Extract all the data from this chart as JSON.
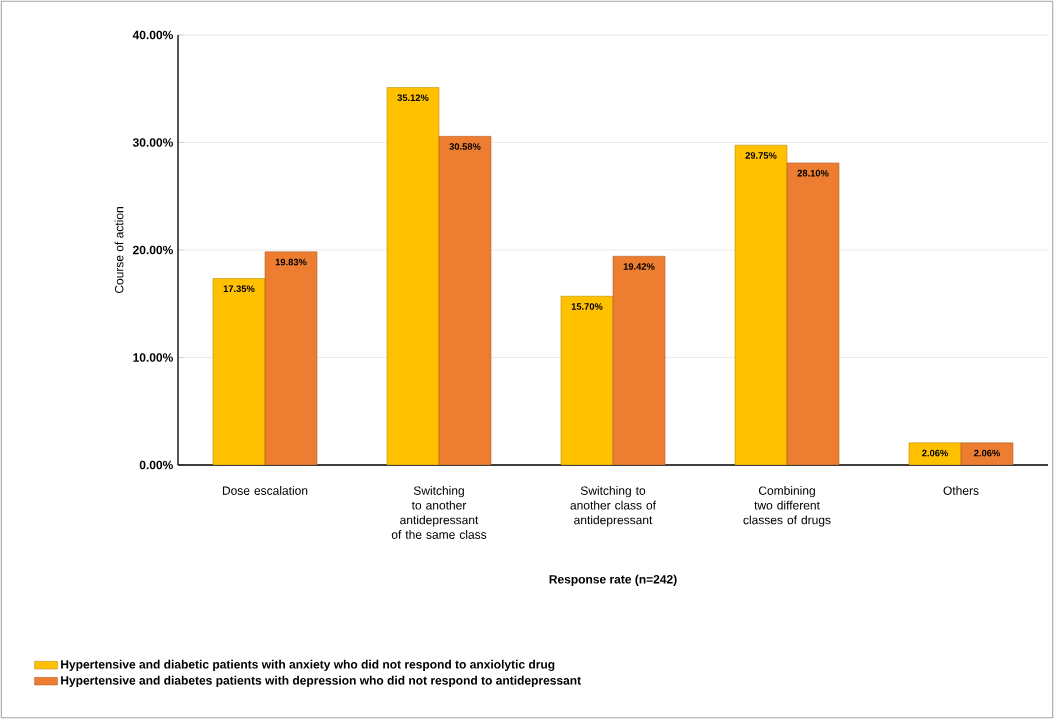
{
  "chart_data": {
    "type": "bar",
    "xlabel": "Response rate (n=242)",
    "ylabel": "Course of action",
    "categories": [
      "Dose escalation",
      "Switching to another antidepressant of the same class",
      "Switching to another class of antidepressant",
      "Combining two different classes of drugs",
      "Others"
    ],
    "series": [
      {
        "name": "Hypertensive and diabetic patients with anxiety who did not respond to anxiolytic drug",
        "color": "#ffc000",
        "values": [
          17.35,
          35.12,
          15.7,
          29.75,
          2.06
        ],
        "value_labels": [
          "17.35%",
          "35.12%",
          "15.70%",
          "29.75%",
          "2.06%"
        ]
      },
      {
        "name": "Hypertensive and diabetes patients with depression who did not respond to antidepressant",
        "color": "#ed7d31",
        "values": [
          19.83,
          30.58,
          19.42,
          28.1,
          2.06
        ],
        "value_labels": [
          "19.83%",
          "30.58%",
          "19.42%",
          "28.10%",
          "2.06%"
        ]
      }
    ],
    "ylim": [
      0,
      40
    ],
    "yticks": [
      {
        "value": 0,
        "label": "0.00%"
      },
      {
        "value": 10,
        "label": "10.00%"
      },
      {
        "value": 20,
        "label": "20.00%"
      },
      {
        "value": 30,
        "label": "30.00%"
      },
      {
        "value": 40,
        "label": "40.00%"
      }
    ],
    "grid": "y",
    "legend": "bottom"
  }
}
